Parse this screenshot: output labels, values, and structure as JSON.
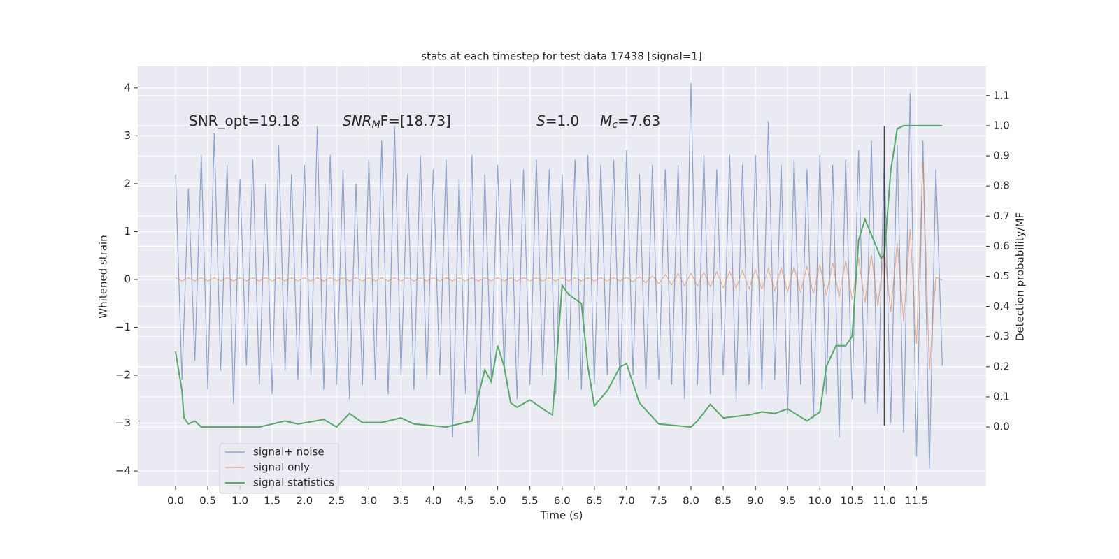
{
  "chart_data": {
    "type": "line",
    "title": "stats at each timestep for test data 17438 [signal=1]",
    "x_label": "Time (s)",
    "y_label": "Whitened strain",
    "y2_label": "Detection probability/MF",
    "annotations": [
      {
        "main": "SNR_opt=19.18"
      },
      {
        "main": "SNR",
        "sub": "M",
        "rest": "F=[18.73]"
      },
      {
        "main": "S",
        "rest": "=1.0"
      },
      {
        "main": "M",
        "sub": "c",
        "rest": "=7.63"
      }
    ],
    "x": [
      0.0,
      0.1,
      0.2,
      0.3,
      0.4,
      0.5,
      0.6,
      0.7,
      0.8,
      0.9,
      1.0,
      1.1,
      1.2,
      1.3,
      1.4,
      1.5,
      1.6,
      1.7,
      1.8,
      1.9,
      2.0,
      2.1,
      2.2,
      2.3,
      2.4,
      2.5,
      2.6,
      2.7,
      2.8,
      2.9,
      3.0,
      3.1,
      3.2,
      3.3,
      3.4,
      3.5,
      3.6,
      3.7,
      3.8,
      3.9,
      4.0,
      4.1,
      4.2,
      4.3,
      4.4,
      4.5,
      4.6,
      4.7,
      4.8,
      4.9,
      5.0,
      5.1,
      5.2,
      5.3,
      5.4,
      5.5,
      5.6,
      5.7,
      5.8,
      5.9,
      6.0,
      6.1,
      6.2,
      6.3,
      6.4,
      6.5,
      6.6,
      6.7,
      6.8,
      6.9,
      7.0,
      7.1,
      7.2,
      7.3,
      7.4,
      7.5,
      7.6,
      7.7,
      7.8,
      7.9,
      8.0,
      8.1,
      8.2,
      8.3,
      8.4,
      8.5,
      8.6,
      8.7,
      8.8,
      8.9,
      9.0,
      9.1,
      9.2,
      9.3,
      9.4,
      9.5,
      9.6,
      9.7,
      9.8,
      9.9,
      10.0,
      10.1,
      10.2,
      10.3,
      10.4,
      10.5,
      10.6,
      10.7,
      10.8,
      10.9,
      11.0,
      11.1,
      11.2,
      11.3,
      11.4,
      11.5,
      11.6,
      11.7,
      11.8,
      11.9
    ],
    "series": [
      {
        "name": "signal+ noise",
        "color": "#4c72b0",
        "values": [
          2.2,
          -2.1,
          1.9,
          -1.7,
          2.6,
          -2.3,
          3.05,
          -1.9,
          2.4,
          -2.6,
          2.1,
          -1.8,
          2.5,
          -2.2,
          2.0,
          -2.4,
          2.8,
          -1.9,
          2.2,
          -2.1,
          2.4,
          -2.0,
          3.2,
          -2.3,
          2.6,
          -2.2,
          2.3,
          -2.5,
          2.0,
          -2.2,
          2.5,
          -2.1,
          2.9,
          -2.4,
          3.2,
          -2.0,
          2.2,
          -2.3,
          2.6,
          -2.1,
          2.3,
          -2.0,
          2.5,
          -3.3,
          2.1,
          -2.4,
          2.6,
          -3.7,
          2.2,
          -2.1,
          2.4,
          -1.9,
          2.1,
          -2.5,
          2.3,
          -2.2,
          2.5,
          -2.0,
          2.3,
          -2.4,
          2.2,
          -2.1,
          2.5,
          -2.3,
          2.6,
          -2.2,
          2.4,
          -2.0,
          2.5,
          -2.4,
          2.7,
          -2.0,
          2.2,
          -2.3,
          2.4,
          -2.1,
          2.3,
          -2.2,
          2.4,
          -2.5,
          4.1,
          -2.2,
          2.6,
          -2.4,
          2.3,
          -2.0,
          2.6,
          -2.5,
          2.4,
          -2.2,
          2.6,
          -2.3,
          3.3,
          -2.1,
          2.4,
          -2.8,
          2.5,
          -2.2,
          2.3,
          -2.9,
          2.6,
          -2.4,
          2.4,
          -3.3,
          2.5,
          -2.5,
          2.7,
          -2.6,
          2.9,
          -2.8,
          2.6,
          -3.0,
          2.8,
          -3.2,
          3.9,
          -3.7,
          2.9,
          -3.95,
          2.3,
          -1.8
        ]
      },
      {
        "name": "signal only",
        "color": "#dd8452",
        "values": [
          0.03,
          -0.03,
          0.03,
          -0.03,
          0.03,
          -0.03,
          0.03,
          -0.03,
          0.03,
          -0.03,
          0.03,
          -0.03,
          0.03,
          -0.03,
          0.03,
          -0.03,
          0.03,
          -0.03,
          0.03,
          -0.03,
          0.03,
          -0.03,
          0.03,
          -0.03,
          0.03,
          -0.03,
          0.03,
          -0.03,
          0.03,
          -0.03,
          0.03,
          -0.03,
          0.03,
          -0.03,
          0.03,
          -0.03,
          0.03,
          -0.03,
          0.03,
          -0.03,
          0.03,
          -0.03,
          0.03,
          -0.03,
          0.03,
          -0.03,
          0.03,
          -0.03,
          0.03,
          -0.03,
          0.03,
          -0.03,
          0.03,
          -0.03,
          0.03,
          -0.03,
          0.03,
          -0.03,
          0.03,
          -0.03,
          0.03,
          -0.03,
          0.03,
          -0.03,
          0.03,
          -0.03,
          0.03,
          -0.03,
          0.03,
          -0.03,
          0.04,
          -0.05,
          0.06,
          -0.07,
          0.08,
          -0.09,
          0.1,
          -0.11,
          0.12,
          -0.13,
          0.13,
          -0.14,
          0.15,
          -0.15,
          0.16,
          -0.17,
          0.17,
          -0.18,
          0.19,
          -0.2,
          0.2,
          -0.21,
          0.22,
          -0.23,
          0.24,
          -0.25,
          0.26,
          -0.27,
          0.28,
          -0.3,
          0.31,
          -0.33,
          0.35,
          -0.37,
          0.39,
          -0.42,
          0.45,
          -0.48,
          0.52,
          -0.56,
          0.61,
          -0.68,
          0.76,
          -0.88,
          1.05,
          -1.35,
          2.5,
          -1.9,
          0.05,
          -0.02
        ]
      },
      {
        "name": "signal statistics",
        "color": "#55a868",
        "axis": "y2",
        "x": [
          0.0,
          0.1,
          0.13,
          0.2,
          0.3,
          0.4,
          0.7,
          1.0,
          1.3,
          1.5,
          1.7,
          1.9,
          2.3,
          2.5,
          2.7,
          2.9,
          3.2,
          3.5,
          3.7,
          4.2,
          4.6,
          4.8,
          4.9,
          5.0,
          5.1,
          5.2,
          5.3,
          5.5,
          5.7,
          5.85,
          6.0,
          6.1,
          6.3,
          6.4,
          6.5,
          6.7,
          6.9,
          7.0,
          7.2,
          7.5,
          8.0,
          8.1,
          8.3,
          8.5,
          8.9,
          9.1,
          9.3,
          9.5,
          9.8,
          10.0,
          10.1,
          10.25,
          10.4,
          10.5,
          10.6,
          10.7,
          10.95,
          11.0,
          11.1,
          11.2,
          11.3,
          11.9
        ],
        "values": [
          0.25,
          0.12,
          0.03,
          0.01,
          0.02,
          0.0,
          0.0,
          0.0,
          0.0,
          0.01,
          0.02,
          0.01,
          0.025,
          0.0,
          0.045,
          0.015,
          0.015,
          0.03,
          0.01,
          0.0,
          0.02,
          0.19,
          0.15,
          0.27,
          0.2,
          0.08,
          0.065,
          0.09,
          0.06,
          0.04,
          0.47,
          0.44,
          0.41,
          0.2,
          0.07,
          0.12,
          0.2,
          0.21,
          0.08,
          0.01,
          0.0,
          0.02,
          0.075,
          0.03,
          0.04,
          0.05,
          0.045,
          0.06,
          0.02,
          0.05,
          0.2,
          0.27,
          0.27,
          0.3,
          0.62,
          0.69,
          0.56,
          0.57,
          0.85,
          0.99,
          1.0,
          1.0
        ]
      }
    ],
    "vline": {
      "x": 11.0,
      "ymin": -3.05,
      "ymax": 3.2,
      "color": "#444444"
    },
    "xlim": [
      -0.586,
      12.58
    ],
    "ylim": [
      -4.32,
      4.45
    ],
    "y2lim": [
      -0.197,
      1.197
    ],
    "xticks": [
      {
        "value": 0,
        "label": "0.0"
      },
      0.5,
      {
        "value": 1,
        "label": "1.0"
      },
      1.5,
      {
        "value": 2,
        "label": "2.0"
      },
      2.5,
      {
        "value": 3,
        "label": "3.0"
      },
      3.5,
      {
        "value": 4,
        "label": "4.0"
      },
      4.5,
      {
        "value": 5,
        "label": "5.0"
      },
      5.5,
      {
        "value": 6,
        "label": "6.0"
      },
      6.5,
      {
        "value": 7,
        "label": "7.0"
      },
      7.5,
      {
        "value": 8,
        "label": "8.0"
      },
      8.5,
      {
        "value": 9,
        "label": "9.0"
      },
      9.5,
      {
        "value": 10,
        "label": "10.0"
      },
      10.5,
      {
        "value": 11,
        "label": "11.0"
      },
      11.5
    ],
    "yticks": [
      {
        "value": -4,
        "label": "−4"
      },
      {
        "value": -3,
        "label": "−3"
      },
      {
        "value": -2,
        "label": "−2"
      },
      {
        "value": -1,
        "label": "−1"
      },
      0,
      1,
      2,
      3,
      4
    ],
    "y2ticks": [
      {
        "value": 0,
        "label": "0.0"
      },
      0.1,
      0.2,
      0.3,
      0.4,
      0.5,
      0.6,
      0.7,
      0.8,
      0.9,
      {
        "value": 1,
        "label": "1.0"
      },
      1.1
    ],
    "grid": true,
    "legend": "lower left"
  }
}
